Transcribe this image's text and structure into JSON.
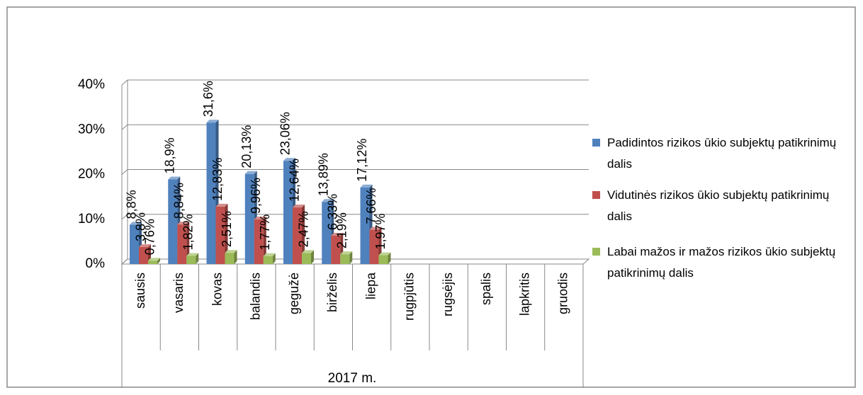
{
  "chart_data": {
    "type": "bar",
    "categories": [
      "sausis",
      "vasaris",
      "kovas",
      "balandis",
      "gegužė",
      "birželis",
      "liepa",
      "rugpjūtis",
      "rugsėjis",
      "spalis",
      "lapkritis",
      "gruodis"
    ],
    "x_group_label": "2017 m.",
    "series": [
      {
        "name": "Padidintos rizikos ūkio subjektų patikrinimų dalis",
        "color": "#4f81bd",
        "values": [
          8.8,
          18.9,
          31.6,
          20.13,
          23.06,
          13.89,
          17.12,
          null,
          null,
          null,
          null,
          null
        ],
        "value_labels": [
          "8,8%",
          "18,9%",
          "31,6%",
          "20,13%",
          "23,06%",
          "13,89%",
          "17,12%",
          null,
          null,
          null,
          null,
          null
        ]
      },
      {
        "name": "Vidutinės rizikos ūkio subjektų patikrinimų dalis",
        "color": "#c0504d",
        "values": [
          3.8,
          8.84,
          12.83,
          9.96,
          12.64,
          6.33,
          7.66,
          null,
          null,
          null,
          null,
          null
        ],
        "value_labels": [
          "3,8%",
          "8,84%",
          "12,83%",
          "9,96%",
          "12,64%",
          "6,33%",
          "7,66%",
          null,
          null,
          null,
          null,
          null
        ]
      },
      {
        "name": "Labai mažos ir mažos rizikos ūkio subjektų patikrinimų dalis",
        "color": "#9bbb59",
        "values": [
          0.76,
          1.82,
          2.51,
          1.77,
          2.47,
          2.19,
          1.97,
          null,
          null,
          null,
          null,
          null
        ],
        "value_labels": [
          "0,76%",
          "1,82%",
          "2,51%",
          "1,77%",
          "2,47%",
          "2,19%",
          "1,97%",
          null,
          null,
          null,
          null,
          null
        ]
      }
    ],
    "ylim": [
      0,
      40
    ],
    "yticks": [
      {
        "value": 0,
        "label": "0%"
      },
      {
        "value": 10,
        "label": "10%"
      },
      {
        "value": 20,
        "label": "20%"
      },
      {
        "value": 30,
        "label": "30%"
      },
      {
        "value": 40,
        "label": "40%"
      }
    ],
    "grid": true,
    "legend": "right"
  }
}
